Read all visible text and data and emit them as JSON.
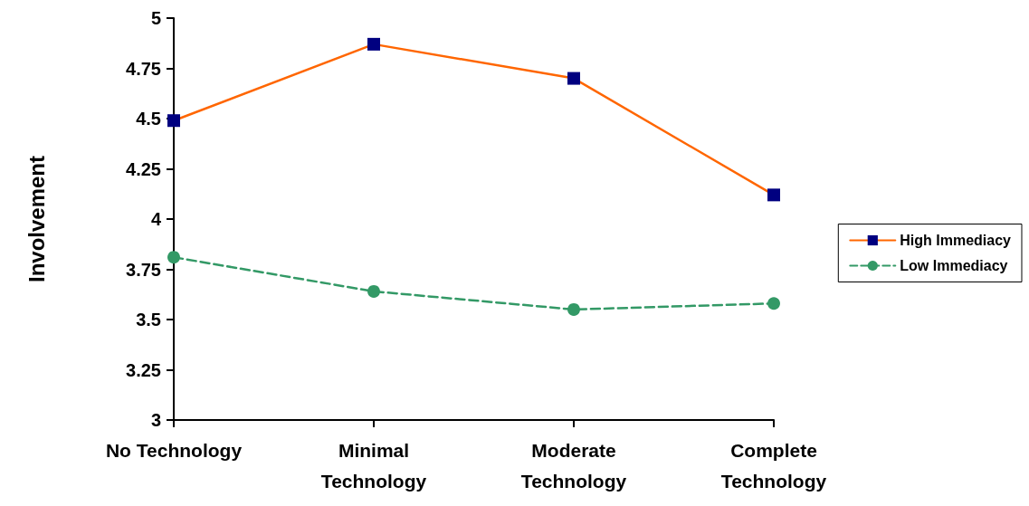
{
  "chart_data": {
    "type": "line",
    "ylabel": "Involvement",
    "categories": [
      "No Technology",
      "Minimal\nTechnology",
      "Moderate\nTechnology",
      "Complete\nTechnology"
    ],
    "series": [
      {
        "name": "High Immediacy",
        "color": "#ff6600",
        "colors": [
          "#000080",
          "#000080",
          "#000080",
          "#000080"
        ],
        "marker": "square",
        "line_style": "solid",
        "values": [
          4.49,
          4.87,
          4.7,
          4.12
        ]
      },
      {
        "name": "Low Immediacy",
        "color": "#339966",
        "marker": "circle",
        "line_style": "dashed",
        "values": [
          3.81,
          3.64,
          3.55,
          3.58
        ]
      }
    ],
    "ylim": [
      3,
      5
    ],
    "yticks": [
      3,
      3.25,
      3.5,
      3.75,
      4,
      4.25,
      4.5,
      4.75,
      5
    ],
    "grid": false,
    "legend": "right"
  }
}
